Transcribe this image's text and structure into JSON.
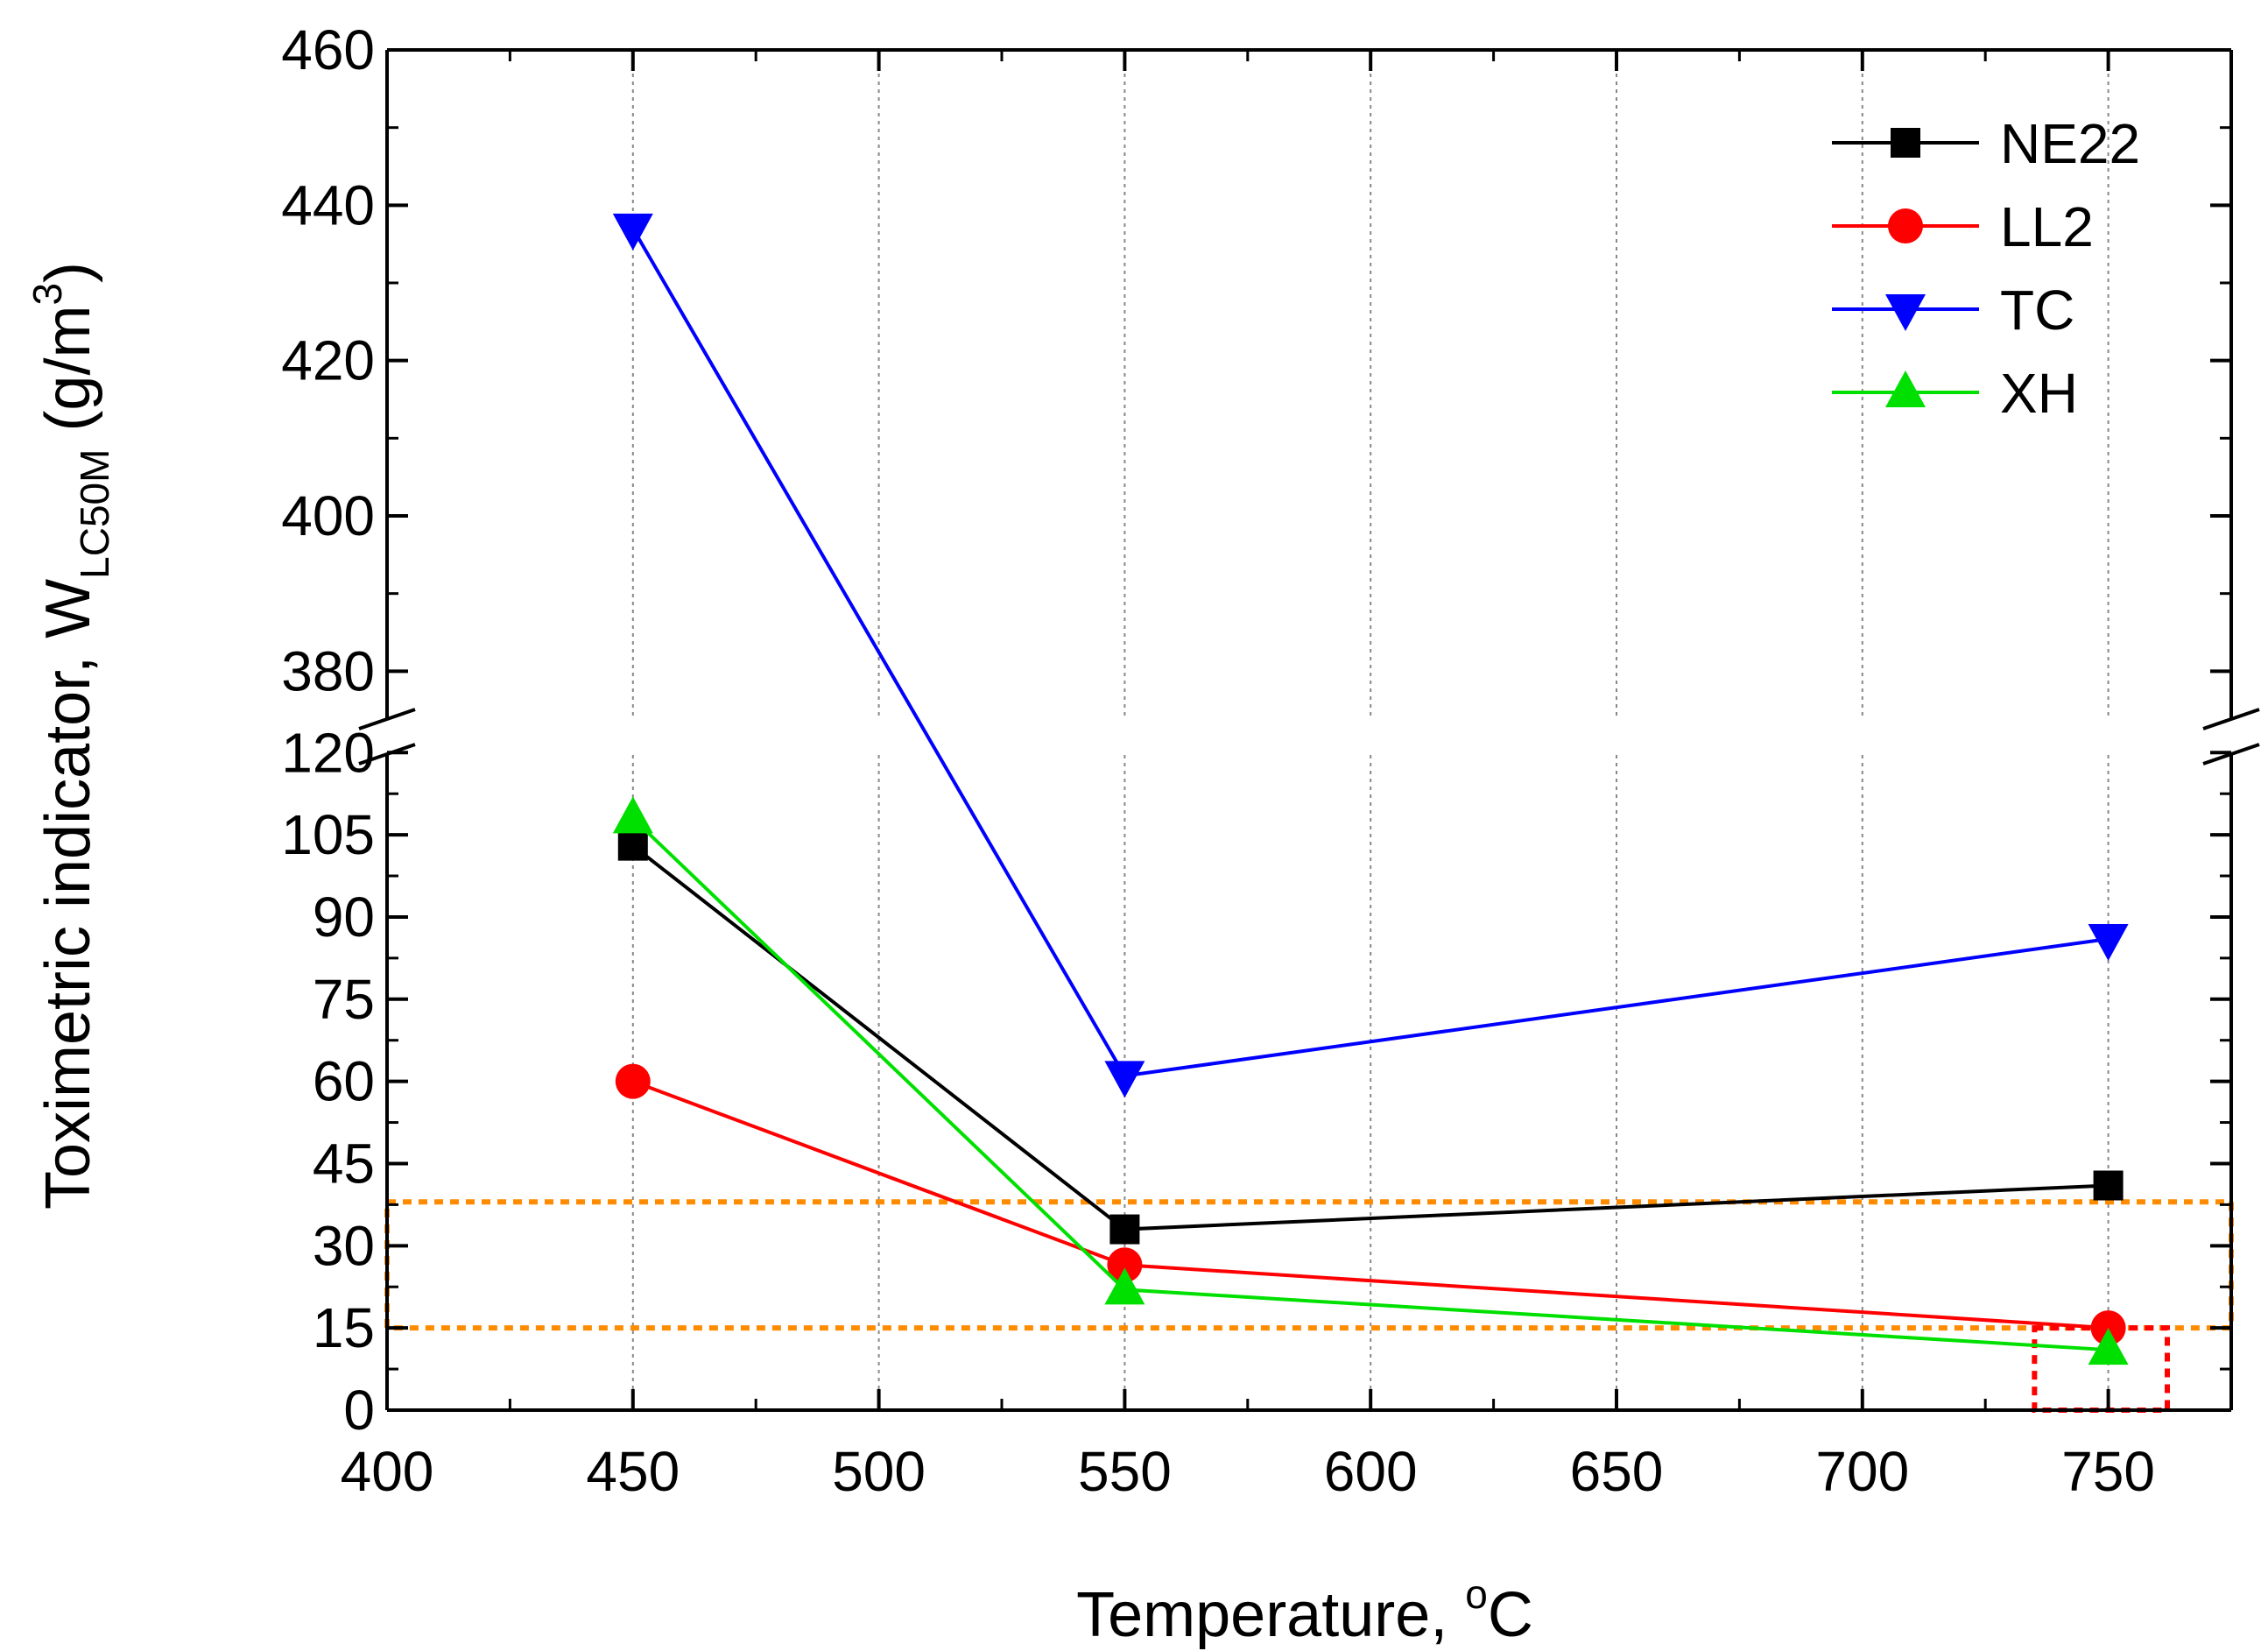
{
  "chart_data": {
    "type": "line",
    "title": "",
    "xlabel": "Temperature, ",
    "xlabel_sup": "o",
    "xlabel_unit": "C",
    "ylabel": "Toximetric indicator, W",
    "ylabel_sub": "LC50M",
    "ylabel_unit": " (g/m",
    "ylabel_sup": "3",
    "ylabel_close": ")",
    "xlim": [
      400,
      775
    ],
    "x_ticks": [
      400,
      450,
      500,
      550,
      600,
      650,
      700,
      750
    ],
    "ylim_lower": [
      0,
      125
    ],
    "ylim_upper": [
      370,
      460
    ],
    "y_ticks_lower": [
      0,
      15,
      30,
      45,
      60,
      75,
      90,
      105,
      120
    ],
    "y_ticks_upper": [
      380,
      400,
      420,
      440,
      460
    ],
    "grid": "vertical dotted",
    "legend_position": "top-right",
    "x": [
      450,
      550,
      750
    ],
    "series": [
      {
        "name": "NE22",
        "values": [
          103,
          33,
          41
        ],
        "color": "#000000",
        "marker": "square"
      },
      {
        "name": "LL2",
        "values": [
          60,
          26.5,
          15
        ],
        "color": "#ff0000",
        "marker": "circle"
      },
      {
        "name": "TC",
        "values": [
          437,
          61,
          86
        ],
        "color": "#0000ff",
        "marker": "triangle-down"
      },
      {
        "name": "XH",
        "values": [
          108,
          22,
          11
        ],
        "color": "#00e000",
        "marker": "triangle-up"
      }
    ],
    "annotations": [
      {
        "kind": "dashed-band",
        "color": "#ff8c00",
        "y_from": 15,
        "y_to": 38,
        "x_from": 400,
        "x_to": 775
      },
      {
        "kind": "dashed-box",
        "color": "#ff0000",
        "y_from": 0,
        "y_to": 15,
        "x_from": 735,
        "x_to": 762
      }
    ]
  }
}
